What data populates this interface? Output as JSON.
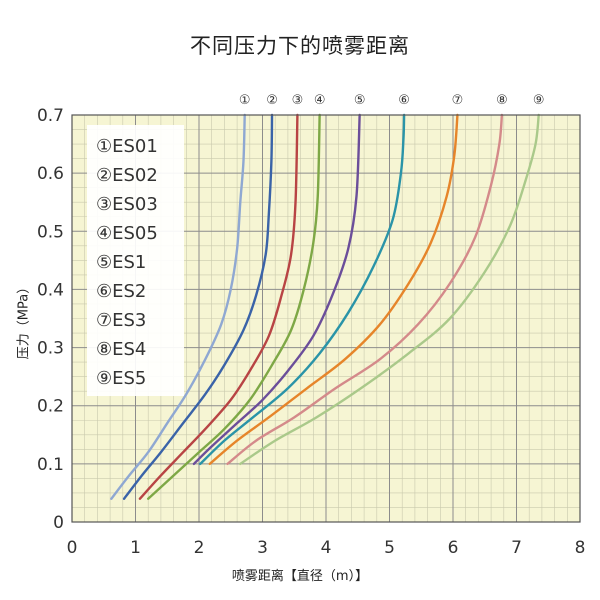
{
  "chart_data": {
    "type": "line",
    "title": "不同压力下的喷雾距离",
    "xlabel": "喷雾距离【直径（m）】",
    "ylabel": "压力（MPa）",
    "xlim": [
      0,
      8
    ],
    "ylim": [
      0,
      0.7
    ],
    "xticks": [
      "0",
      "1",
      "2",
      "3",
      "4",
      "5",
      "6",
      "7",
      "8"
    ],
    "yticks": [
      "0",
      "0.1",
      "0.2",
      "0.3",
      "0.4",
      "0.5",
      "0.6",
      "0.7"
    ],
    "grid": true,
    "legend_position": "top-left",
    "series": [
      {
        "name": "①ES01",
        "tag": "①",
        "color": "#8fa8d2",
        "points": [
          [
            0.62,
            0.04
          ],
          [
            0.9,
            0.08
          ],
          [
            1.2,
            0.12
          ],
          [
            1.5,
            0.17
          ],
          [
            1.8,
            0.22
          ],
          [
            2.1,
            0.28
          ],
          [
            2.35,
            0.34
          ],
          [
            2.5,
            0.4
          ],
          [
            2.6,
            0.47
          ],
          [
            2.65,
            0.55
          ],
          [
            2.7,
            0.62
          ],
          [
            2.72,
            0.7
          ]
        ]
      },
      {
        "name": "②ES02",
        "tag": "②",
        "color": "#3a63a8",
        "points": [
          [
            0.82,
            0.04
          ],
          [
            1.1,
            0.08
          ],
          [
            1.4,
            0.12
          ],
          [
            1.75,
            0.17
          ],
          [
            2.1,
            0.22
          ],
          [
            2.4,
            0.27
          ],
          [
            2.7,
            0.33
          ],
          [
            2.9,
            0.39
          ],
          [
            3.05,
            0.46
          ],
          [
            3.1,
            0.53
          ],
          [
            3.14,
            0.62
          ],
          [
            3.15,
            0.7
          ]
        ]
      },
      {
        "name": "③ES03",
        "tag": "③",
        "color": "#b84444",
        "points": [
          [
            1.07,
            0.04
          ],
          [
            1.4,
            0.08
          ],
          [
            1.75,
            0.12
          ],
          [
            2.1,
            0.16
          ],
          [
            2.5,
            0.21
          ],
          [
            2.8,
            0.26
          ],
          [
            3.1,
            0.32
          ],
          [
            3.3,
            0.39
          ],
          [
            3.45,
            0.46
          ],
          [
            3.52,
            0.55
          ],
          [
            3.55,
            0.7
          ]
        ]
      },
      {
        "name": "④ES05",
        "tag": "④",
        "color": "#7ea846",
        "points": [
          [
            1.2,
            0.04
          ],
          [
            1.6,
            0.08
          ],
          [
            2.0,
            0.12
          ],
          [
            2.4,
            0.16
          ],
          [
            2.8,
            0.21
          ],
          [
            3.15,
            0.27
          ],
          [
            3.45,
            0.33
          ],
          [
            3.65,
            0.4
          ],
          [
            3.8,
            0.48
          ],
          [
            3.87,
            0.56
          ],
          [
            3.9,
            0.7
          ]
        ]
      },
      {
        "name": "⑤ES1",
        "tag": "⑤",
        "color": "#6b4e9a",
        "points": [
          [
            1.92,
            0.1
          ],
          [
            2.2,
            0.13
          ],
          [
            2.6,
            0.17
          ],
          [
            3.0,
            0.21
          ],
          [
            3.4,
            0.26
          ],
          [
            3.8,
            0.32
          ],
          [
            4.1,
            0.39
          ],
          [
            4.35,
            0.47
          ],
          [
            4.48,
            0.56
          ],
          [
            4.53,
            0.7
          ]
        ]
      },
      {
        "name": "⑥ES2",
        "tag": "⑥",
        "color": "#2a94a8",
        "points": [
          [
            2.02,
            0.1
          ],
          [
            2.4,
            0.14
          ],
          [
            2.85,
            0.18
          ],
          [
            3.4,
            0.23
          ],
          [
            3.9,
            0.29
          ],
          [
            4.35,
            0.36
          ],
          [
            4.75,
            0.44
          ],
          [
            5.05,
            0.52
          ],
          [
            5.18,
            0.6
          ],
          [
            5.22,
            0.66
          ],
          [
            5.23,
            0.7
          ]
        ]
      },
      {
        "name": "⑦ES3",
        "tag": "⑦",
        "color": "#e6852a",
        "points": [
          [
            2.17,
            0.1
          ],
          [
            2.6,
            0.14
          ],
          [
            3.1,
            0.18
          ],
          [
            3.7,
            0.23
          ],
          [
            4.3,
            0.28
          ],
          [
            4.85,
            0.34
          ],
          [
            5.3,
            0.41
          ],
          [
            5.65,
            0.48
          ],
          [
            5.9,
            0.56
          ],
          [
            6.02,
            0.63
          ],
          [
            6.07,
            0.7
          ]
        ]
      },
      {
        "name": "⑧ES4",
        "tag": "⑧",
        "color": "#d48a8a",
        "points": [
          [
            2.45,
            0.1
          ],
          [
            2.9,
            0.14
          ],
          [
            3.5,
            0.18
          ],
          [
            4.15,
            0.23
          ],
          [
            4.85,
            0.28
          ],
          [
            5.45,
            0.34
          ],
          [
            5.95,
            0.41
          ],
          [
            6.35,
            0.49
          ],
          [
            6.6,
            0.58
          ],
          [
            6.73,
            0.65
          ],
          [
            6.77,
            0.7
          ]
        ]
      },
      {
        "name": "⑨ES5",
        "tag": "⑨",
        "color": "#aac98a",
        "points": [
          [
            2.65,
            0.1
          ],
          [
            3.2,
            0.14
          ],
          [
            3.85,
            0.18
          ],
          [
            4.55,
            0.23
          ],
          [
            5.3,
            0.29
          ],
          [
            5.95,
            0.35
          ],
          [
            6.5,
            0.43
          ],
          [
            6.9,
            0.51
          ],
          [
            7.15,
            0.59
          ],
          [
            7.3,
            0.65
          ],
          [
            7.35,
            0.7
          ]
        ]
      }
    ]
  }
}
